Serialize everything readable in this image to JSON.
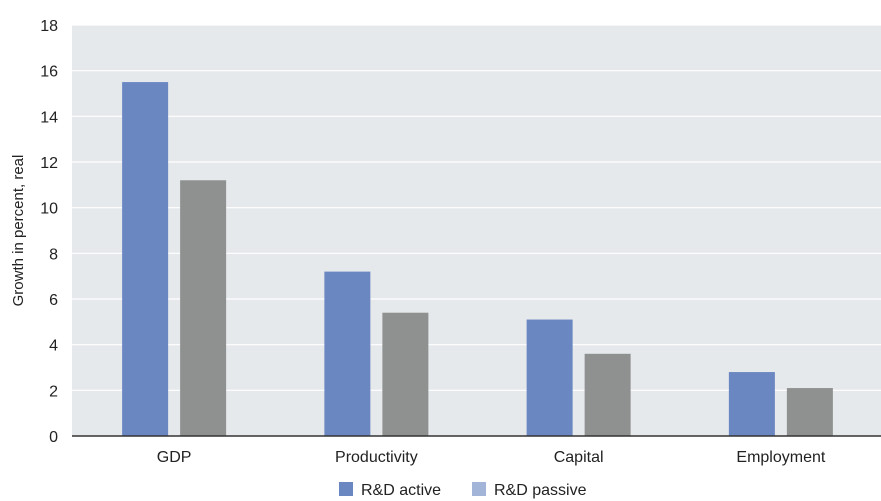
{
  "chart_data": {
    "type": "bar",
    "title": "",
    "xlabel": "",
    "ylabel": "Growth in percent, real",
    "ylim": [
      0,
      18
    ],
    "yticks": [
      0,
      2,
      4,
      6,
      8,
      10,
      12,
      14,
      16,
      18
    ],
    "grid": true,
    "legend_position": "bottom",
    "categories": [
      "GDP",
      "Productivity",
      "Capital",
      "Employment"
    ],
    "series": [
      {
        "name": "R&D active",
        "values": [
          15.5,
          7.2,
          5.1,
          2.8
        ],
        "color": "#6a87c2"
      },
      {
        "name": "R&D passive",
        "values": [
          11.2,
          5.4,
          3.6,
          2.1
        ],
        "color": "#8f9190"
      }
    ],
    "legend": [
      {
        "label": "R&D active",
        "color": "#6a87c2"
      },
      {
        "label": "R&D passive",
        "color": "#a3b4d9"
      }
    ],
    "colors": {
      "plot_background": "#e6e9ec",
      "gridline": "#ffffff",
      "axis": "#333333"
    }
  }
}
